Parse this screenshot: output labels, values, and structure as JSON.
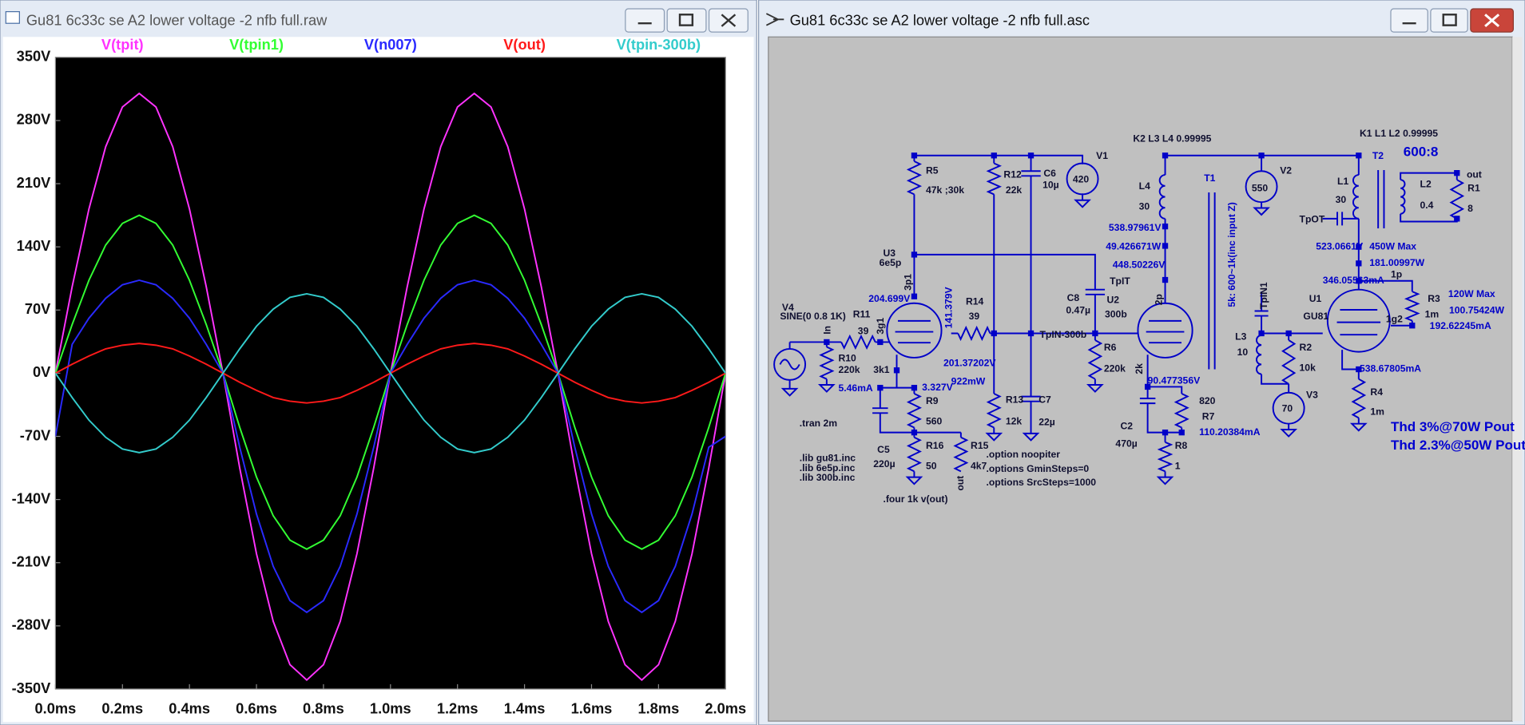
{
  "plot_window": {
    "title": "Gu81 6c33c se A2 lower voltage -2 nfb full.raw"
  },
  "chart_data": {
    "type": "line",
    "x": [
      0,
      0.05,
      0.1,
      0.15,
      0.2,
      0.25,
      0.3,
      0.35,
      0.4,
      0.45,
      0.5,
      0.55,
      0.6,
      0.65,
      0.7,
      0.75,
      0.8,
      0.85,
      0.9,
      0.95,
      1,
      1.05,
      1.1,
      1.15,
      1.2,
      1.25,
      1.3,
      1.35,
      1.4,
      1.45,
      1.5,
      1.55,
      1.6,
      1.65,
      1.7,
      1.75,
      1.8,
      1.85,
      1.9,
      1.95,
      2
    ],
    "series": [
      {
        "name": "V(tpit)",
        "color": "#ff33ff",
        "values": [
          0,
          96,
          182,
          251,
          295,
          310,
          295,
          251,
          182,
          96,
          0,
          -105,
          -200,
          -275,
          -323,
          -340,
          -323,
          -275,
          -200,
          -105,
          0,
          96,
          182,
          251,
          295,
          310,
          295,
          251,
          182,
          96,
          0,
          -105,
          -200,
          -275,
          -323,
          -340,
          -323,
          -275,
          -200,
          -105,
          0
        ]
      },
      {
        "name": "V(tpin1)",
        "color": "#33ff33",
        "values": [
          0,
          54,
          103,
          142,
          166,
          175,
          166,
          142,
          103,
          54,
          0,
          -60,
          -115,
          -158,
          -185,
          -195,
          -185,
          -158,
          -115,
          -60,
          0,
          54,
          103,
          142,
          166,
          175,
          166,
          142,
          103,
          54,
          0,
          -60,
          -115,
          -158,
          -185,
          -195,
          -185,
          -158,
          -115,
          -60,
          0
        ]
      },
      {
        "name": "V(n007)",
        "color": "#2a2aff",
        "values": [
          -70,
          32,
          61,
          83,
          98,
          103,
          98,
          83,
          61,
          32,
          0,
          -82,
          -156,
          -214,
          -252,
          -265,
          -252,
          -214,
          -156,
          -82,
          0,
          32,
          61,
          83,
          98,
          103,
          98,
          83,
          61,
          32,
          0,
          -82,
          -156,
          -214,
          -252,
          -265,
          -252,
          -214,
          -156,
          -82,
          -70
        ]
      },
      {
        "name": "V(out)",
        "color": "#ff1a1a",
        "values": [
          0,
          10,
          19,
          27,
          31,
          33,
          31,
          27,
          19,
          10,
          0,
          -10,
          -19,
          -27,
          -31,
          -33,
          -31,
          -27,
          -19,
          -10,
          0,
          10,
          19,
          27,
          31,
          33,
          31,
          27,
          19,
          10,
          0,
          -10,
          -19,
          -27,
          -31,
          -33,
          -31,
          -27,
          -19,
          -10,
          0
        ]
      },
      {
        "name": "V(tpin-300b)",
        "color": "#33cccc",
        "values": [
          0,
          -27,
          -52,
          -71,
          -84,
          -88,
          -84,
          -71,
          -52,
          -27,
          0,
          27,
          52,
          71,
          84,
          88,
          84,
          71,
          52,
          27,
          0,
          -27,
          -52,
          -71,
          -84,
          -88,
          -84,
          -71,
          -52,
          -27,
          0,
          27,
          52,
          71,
          84,
          88,
          84,
          71,
          52,
          27,
          0
        ]
      }
    ],
    "xlim": [
      0,
      2
    ],
    "xticks": [
      {
        "value": 0,
        "label": "0.0ms"
      },
      {
        "value": 0.2,
        "label": "0.2ms"
      },
      {
        "value": 0.4,
        "label": "0.4ms"
      },
      {
        "value": 0.6,
        "label": "0.6ms"
      },
      {
        "value": 0.8,
        "label": "0.8ms"
      },
      {
        "value": 1,
        "label": "1.0ms"
      },
      {
        "value": 1.2,
        "label": "1.2ms"
      },
      {
        "value": 1.4,
        "label": "1.4ms"
      },
      {
        "value": 1.6,
        "label": "1.6ms"
      },
      {
        "value": 1.8,
        "label": "1.8ms"
      },
      {
        "value": 2,
        "label": "2.0ms"
      }
    ],
    "ylim": [
      -350,
      350
    ],
    "yticks": [
      {
        "value": -350,
        "label": "-350V"
      },
      {
        "value": -280,
        "label": "-280V"
      },
      {
        "value": -210,
        "label": "-210V"
      },
      {
        "value": -140,
        "label": "-140V"
      },
      {
        "value": -70,
        "label": "-70V"
      },
      {
        "value": 0,
        "label": "0V"
      },
      {
        "value": 70,
        "label": "70V"
      },
      {
        "value": 140,
        "label": "140V"
      },
      {
        "value": 210,
        "label": "210V"
      },
      {
        "value": 280,
        "label": "280V"
      },
      {
        "value": 350,
        "label": "350V"
      }
    ],
    "grid": false
  },
  "schematic_window": {
    "title": "Gu81 6c33c se A2 lower voltage -2 nfb full.asc",
    "labels": [
      "V1",
      "420",
      "R5",
      "47k ;30k",
      "R12",
      "22k",
      "C6",
      "10µ",
      "K2  L3 L4 0.99995",
      "T1",
      "L4",
      "30",
      "V2",
      "550",
      "K1 L1 L2 0.99995",
      "T2",
      "600:8",
      "L1",
      "30",
      "L2",
      "0.4",
      "out",
      "R1",
      "8",
      "TpOT",
      "538.97961V",
      "49.426671W",
      "448.50226V",
      "TpIT",
      "523.0661V",
      "450W Max",
      "181.00997W",
      "346.05563mA",
      "1p",
      "U3",
      "6e5p",
      "3p1",
      "204.699V",
      "141.379V",
      "R14",
      "39",
      "C8",
      "0.47µ",
      "U2",
      "300b",
      "2p",
      "5k: 600~1k(inc input Z)",
      "TpIN1",
      "U1",
      "GU81",
      "R3",
      "1m",
      "1g2",
      "120W Max",
      "100.75424W",
      "192.62245mA",
      "V4",
      "SINE(0 0.8 1K)",
      "R11",
      "39",
      "3g1",
      "In",
      "TpIN-300b",
      "L3",
      "10",
      "R2",
      "10k",
      "R10",
      "220k",
      "R6",
      "220k",
      "3k1",
      "201.37202V",
      "922mW",
      "2k",
      "90.477356V",
      "538.67805mA",
      "5.46mA",
      "3.327V",
      "R9",
      "560",
      "820",
      "R7",
      "110.20384mA",
      "V3",
      "70",
      "R4",
      "1m",
      "Thd 3%@70W Pout",
      "Thd 2.3%@50W Pout",
      ".tran 2m",
      "R13",
      "12k",
      "C7",
      "22µ",
      "C2",
      "470µ",
      "R8",
      "1",
      "C5",
      "220µ",
      "R16",
      "50",
      "R15",
      "4k7",
      "out",
      ".lib gu81.inc",
      ".lib 6e5p.inc",
      ".lib 300b.inc",
      ".option noopiter",
      ".options GminSteps=0",
      ".options SrcSteps=1000",
      ".four 1k v(out)"
    ]
  }
}
